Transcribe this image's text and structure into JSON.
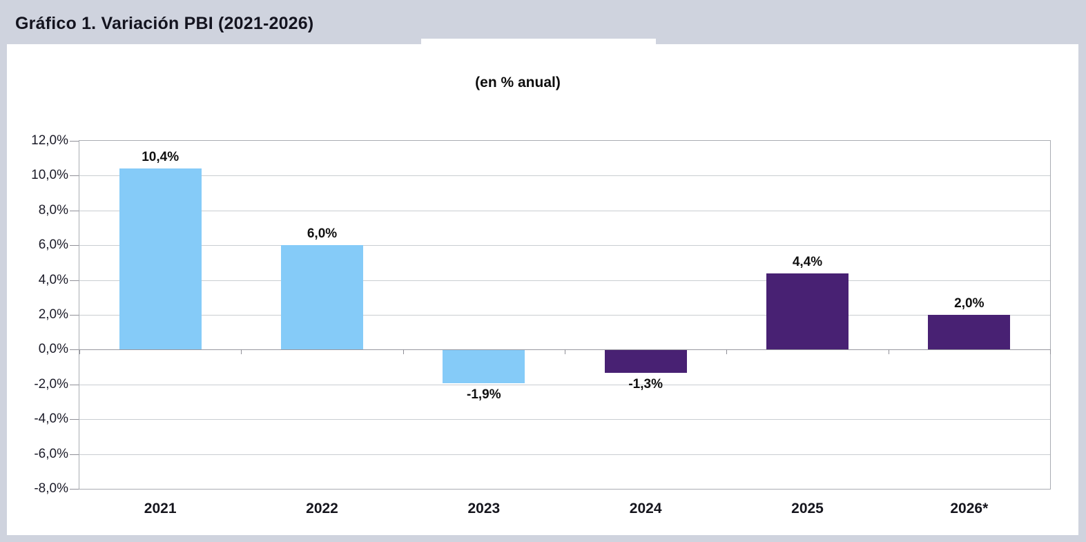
{
  "header": {
    "title": "Gráfico 1. Variación PBI (2021-2026)"
  },
  "chart": {
    "subtitle": "(en % anual)"
  },
  "chart_data": {
    "type": "bar",
    "title": "(en % anual)",
    "categories": [
      "2021",
      "2022",
      "2023",
      "2024",
      "2025",
      "2026*"
    ],
    "values": [
      10.4,
      6.0,
      -1.9,
      -1.3,
      4.4,
      2.0
    ],
    "value_labels": [
      "10,4%",
      "6,0%",
      "-1,9%",
      "-1,3%",
      "4,4%",
      "2,0%"
    ],
    "bar_colors": [
      "#85CBF8",
      "#85CBF8",
      "#85CBF8",
      "#482173",
      "#482173",
      "#482173"
    ],
    "xlabel": "",
    "ylabel": "",
    "ylim": [
      -8,
      12
    ],
    "ytick_step": 2,
    "ytick_values": [
      12,
      10,
      8,
      6,
      4,
      2,
      0,
      -2,
      -4,
      -6,
      -8
    ],
    "ytick_labels": [
      "12,0%",
      "10,0%",
      "8,0%",
      "6,0%",
      "4,0%",
      "2,0%",
      "0,0%",
      "-2,0%",
      "-4,0%",
      "-6,0%",
      "-8,0%"
    ],
    "grid": true,
    "legend": false,
    "colors": {
      "positive_early_bar": "#85CBF8",
      "forecast_bar": "#482173",
      "panel_background": "#ffffff",
      "page_background": "#CFD3DE",
      "gridline": "#c9cdd1",
      "axis_text": "#1b1b28"
    }
  }
}
